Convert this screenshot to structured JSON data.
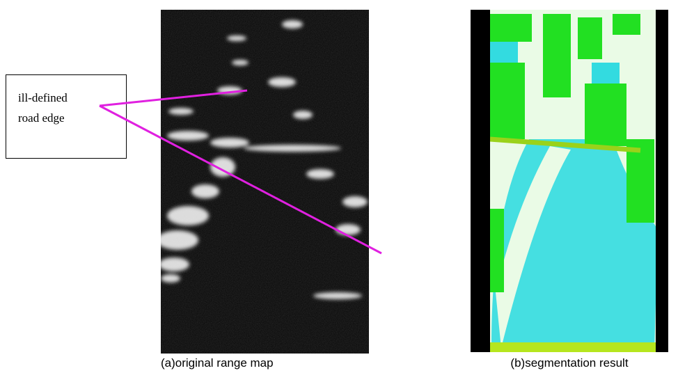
{
  "annotation": {
    "lines": [
      "ill-defined",
      "road edge"
    ]
  },
  "captions": [
    "(a)original range map",
    "(b)segmentation result"
  ]
}
